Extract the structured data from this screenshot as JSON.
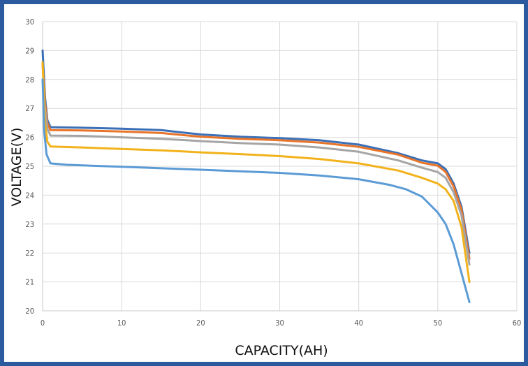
{
  "chart_data": {
    "type": "line",
    "xlabel": "CAPACITY(AH)",
    "ylabel": "VOLTAGE(V)",
    "xlim": [
      0,
      60
    ],
    "ylim": [
      20,
      30
    ],
    "x_ticks": [
      "0",
      "10",
      "20",
      "30",
      "40",
      "50",
      "60"
    ],
    "y_ticks": [
      "20",
      "21",
      "22",
      "23",
      "24",
      "25",
      "26",
      "27",
      "28",
      "29",
      "30"
    ],
    "grid": true,
    "legend": "none",
    "series": [
      {
        "color": "#3b6fb6",
        "points": [
          [
            0,
            29.0
          ],
          [
            0.3,
            27.4
          ],
          [
            0.6,
            26.6
          ],
          [
            1,
            26.35
          ],
          [
            5,
            26.33
          ],
          [
            10,
            26.3
          ],
          [
            15,
            26.25
          ],
          [
            20,
            26.1
          ],
          [
            25,
            26.02
          ],
          [
            30,
            25.97
          ],
          [
            35,
            25.9
          ],
          [
            40,
            25.75
          ],
          [
            45,
            25.45
          ],
          [
            48,
            25.2
          ],
          [
            50,
            25.1
          ],
          [
            51,
            24.9
          ],
          [
            52,
            24.4
          ],
          [
            53,
            23.6
          ],
          [
            54,
            22.0
          ]
        ]
      },
      {
        "color": "#e8742a",
        "points": [
          [
            0,
            28.5
          ],
          [
            0.3,
            27.2
          ],
          [
            0.6,
            26.5
          ],
          [
            1,
            26.25
          ],
          [
            5,
            26.24
          ],
          [
            10,
            26.2
          ],
          [
            15,
            26.15
          ],
          [
            20,
            26.02
          ],
          [
            25,
            25.95
          ],
          [
            30,
            25.9
          ],
          [
            35,
            25.82
          ],
          [
            40,
            25.67
          ],
          [
            45,
            25.4
          ],
          [
            48,
            25.12
          ],
          [
            50,
            25.02
          ],
          [
            51,
            24.8
          ],
          [
            52,
            24.3
          ],
          [
            53,
            23.5
          ],
          [
            54,
            21.8
          ]
        ]
      },
      {
        "color": "#a5a5a5",
        "points": [
          [
            0,
            28.0
          ],
          [
            0.3,
            27.0
          ],
          [
            0.6,
            26.3
          ],
          [
            1,
            26.06
          ],
          [
            5,
            26.05
          ],
          [
            10,
            26.0
          ],
          [
            15,
            25.95
          ],
          [
            20,
            25.87
          ],
          [
            25,
            25.8
          ],
          [
            30,
            25.75
          ],
          [
            35,
            25.65
          ],
          [
            40,
            25.5
          ],
          [
            45,
            25.2
          ],
          [
            48,
            24.95
          ],
          [
            50,
            24.8
          ],
          [
            51,
            24.6
          ],
          [
            52,
            24.1
          ],
          [
            53,
            23.3
          ],
          [
            54,
            21.6
          ]
        ]
      },
      {
        "color": "#f2b21b",
        "points": [
          [
            0,
            28.6
          ],
          [
            0.3,
            26.5
          ],
          [
            0.6,
            25.85
          ],
          [
            1,
            25.68
          ],
          [
            5,
            25.65
          ],
          [
            10,
            25.6
          ],
          [
            15,
            25.55
          ],
          [
            20,
            25.48
          ],
          [
            25,
            25.42
          ],
          [
            30,
            25.35
          ],
          [
            35,
            25.25
          ],
          [
            40,
            25.1
          ],
          [
            45,
            24.85
          ],
          [
            48,
            24.6
          ],
          [
            50,
            24.4
          ],
          [
            51,
            24.2
          ],
          [
            52,
            23.8
          ],
          [
            53,
            22.9
          ],
          [
            54,
            21.0
          ]
        ]
      },
      {
        "color": "#5b9bd5",
        "points": [
          [
            0,
            28.0
          ],
          [
            0.2,
            26.2
          ],
          [
            0.5,
            25.4
          ],
          [
            1,
            25.1
          ],
          [
            3,
            25.05
          ],
          [
            10,
            24.98
          ],
          [
            20,
            24.88
          ],
          [
            30,
            24.77
          ],
          [
            35,
            24.68
          ],
          [
            40,
            24.55
          ],
          [
            44,
            24.35
          ],
          [
            46,
            24.2
          ],
          [
            48,
            23.95
          ],
          [
            50,
            23.4
          ],
          [
            51,
            23.0
          ],
          [
            52,
            22.3
          ],
          [
            53,
            21.3
          ],
          [
            54,
            20.3
          ]
        ]
      }
    ]
  }
}
